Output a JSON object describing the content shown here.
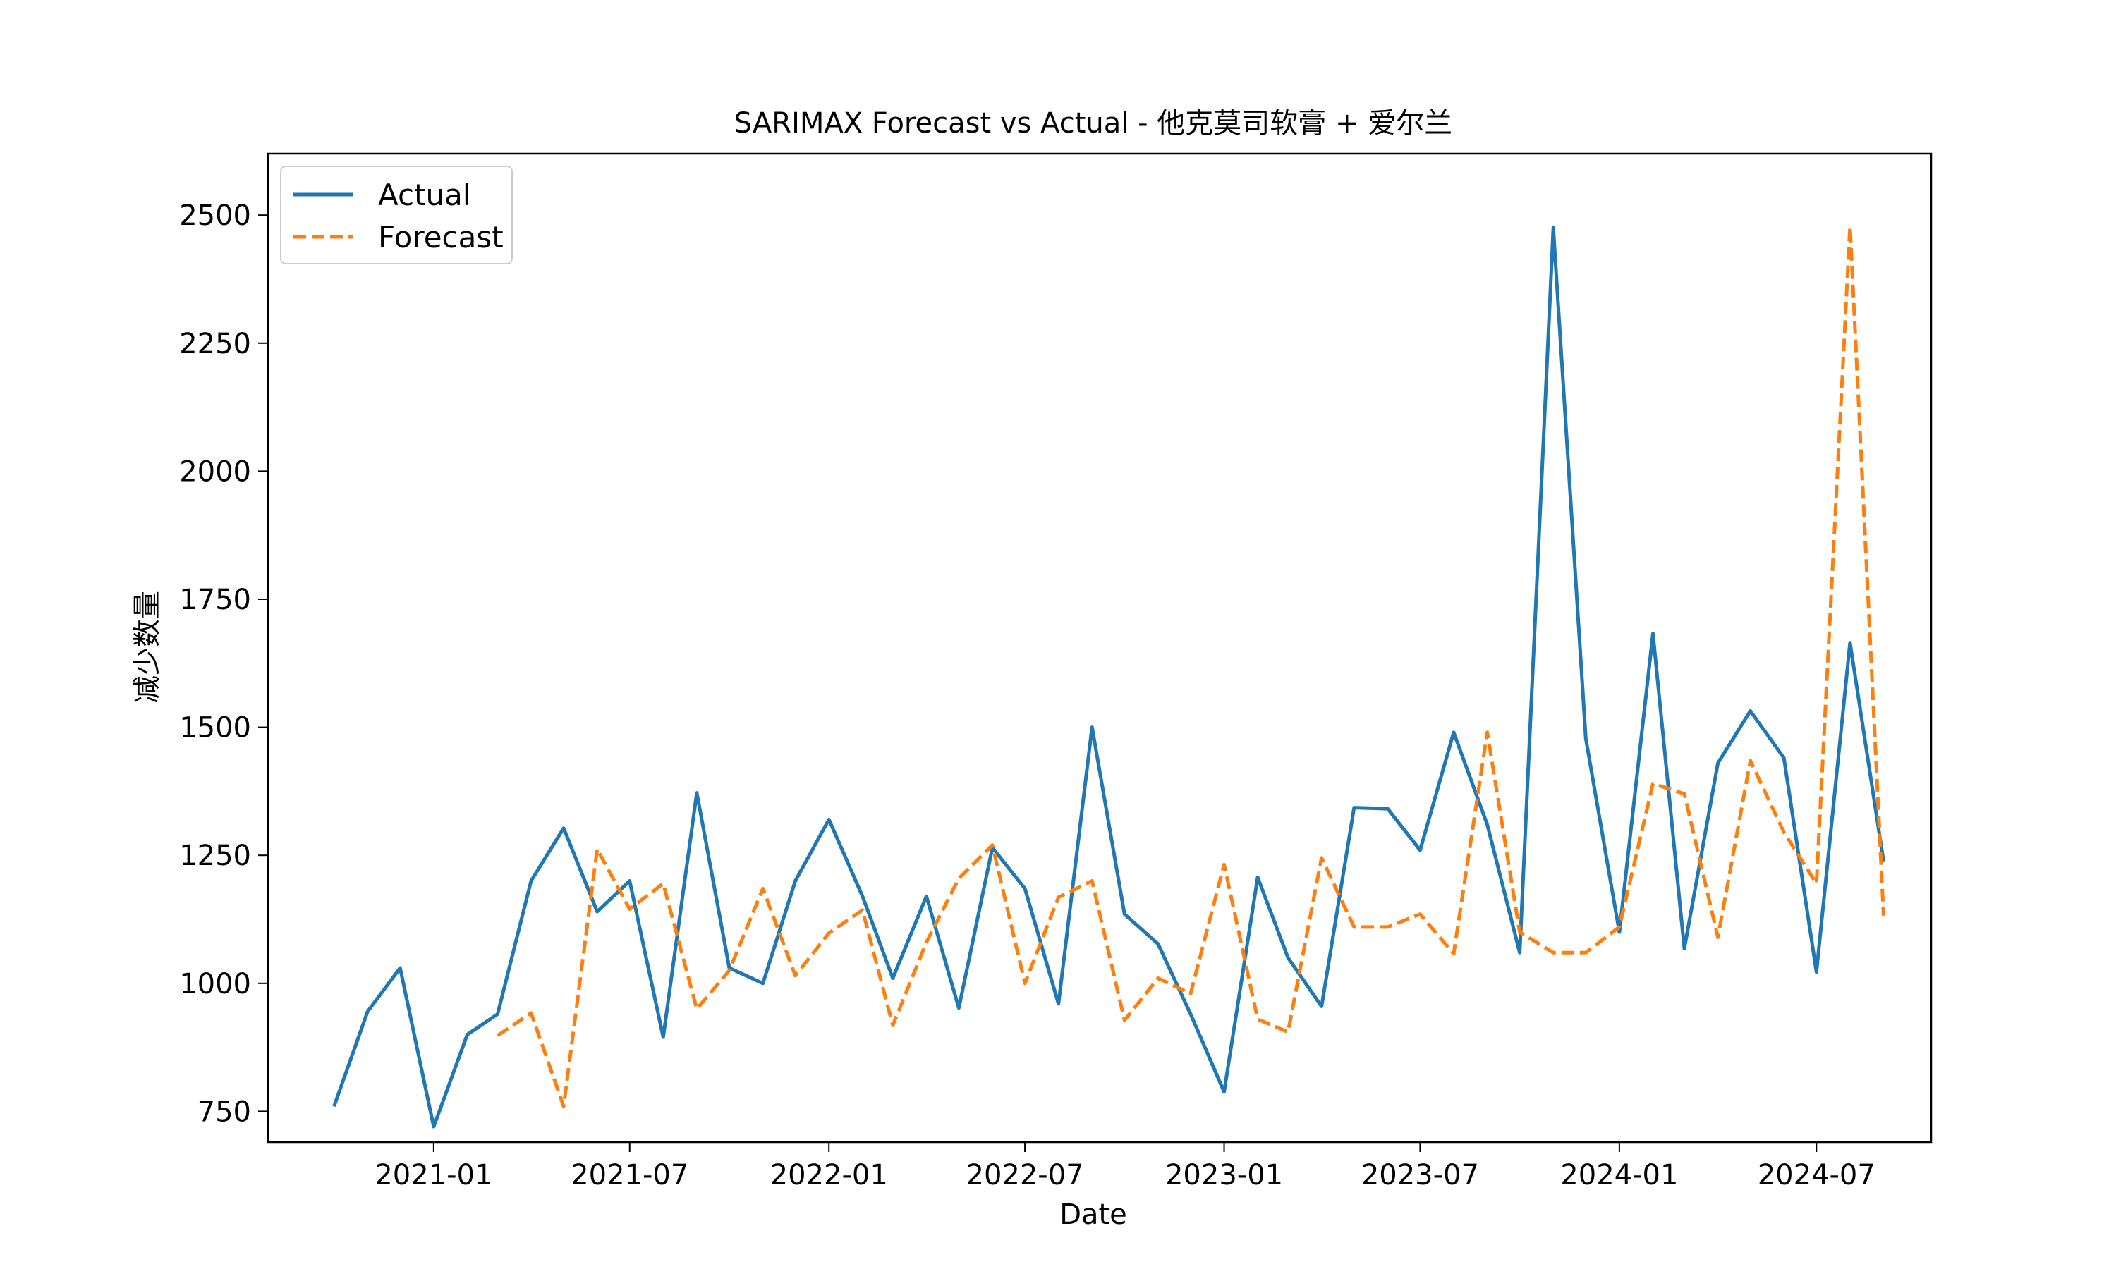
{
  "chart_data": {
    "type": "line",
    "title": "SARIMAX Forecast vs Actual - 他克莫司软膏 + 爱尔兰",
    "xlabel": "Date",
    "ylabel": "减少数量",
    "xlim": [
      "2020-08-01",
      "2024-10-15"
    ],
    "ylim": [
      690,
      2620
    ],
    "x_ticks": [
      "2021-01",
      "2021-07",
      "2022-01",
      "2022-07",
      "2023-01",
      "2023-07",
      "2024-01",
      "2024-07"
    ],
    "y_ticks": [
      750,
      1000,
      1250,
      1500,
      1750,
      2000,
      2250,
      2500
    ],
    "grid": false,
    "legend_position": "top-left",
    "series": [
      {
        "name": "Actual",
        "color": "#1f77b4",
        "dash": "solid",
        "points": [
          [
            "2020-10-01",
            760
          ],
          [
            "2020-11-01",
            945
          ],
          [
            "2020-12-01",
            1030
          ],
          [
            "2021-01-01",
            720
          ],
          [
            "2021-02-01",
            900
          ],
          [
            "2021-03-01",
            940
          ],
          [
            "2021-04-01",
            1200
          ],
          [
            "2021-05-01",
            1303
          ],
          [
            "2021-06-01",
            1140
          ],
          [
            "2021-07-01",
            1200
          ],
          [
            "2021-08-01",
            895
          ],
          [
            "2021-09-01",
            1372
          ],
          [
            "2021-10-01",
            1030
          ],
          [
            "2021-11-01",
            1000
          ],
          [
            "2021-12-01",
            1200
          ],
          [
            "2022-01-01",
            1320
          ],
          [
            "2022-02-01",
            1170
          ],
          [
            "2022-03-01",
            1010
          ],
          [
            "2022-04-01",
            1170
          ],
          [
            "2022-05-01",
            952
          ],
          [
            "2022-06-01",
            1265
          ],
          [
            "2022-07-01",
            1185
          ],
          [
            "2022-08-01",
            960
          ],
          [
            "2022-09-01",
            1500
          ],
          [
            "2022-10-01",
            1135
          ],
          [
            "2022-11-01",
            1077
          ],
          [
            "2022-12-01",
            940
          ],
          [
            "2023-01-01",
            788
          ],
          [
            "2023-02-01",
            1207
          ],
          [
            "2023-03-01",
            1050
          ],
          [
            "2023-04-01",
            955
          ],
          [
            "2023-05-01",
            1343
          ],
          [
            "2023-06-01",
            1341
          ],
          [
            "2023-07-01",
            1260
          ],
          [
            "2023-08-01",
            1490
          ],
          [
            "2023-09-01",
            1310
          ],
          [
            "2023-10-01",
            1060
          ],
          [
            "2023-11-01",
            2475
          ],
          [
            "2023-12-01",
            1478
          ],
          [
            "2024-01-01",
            1100
          ],
          [
            "2024-02-01",
            1683
          ],
          [
            "2024-03-01",
            1068
          ],
          [
            "2024-04-01",
            1430
          ],
          [
            "2024-05-01",
            1532
          ],
          [
            "2024-06-01",
            1440
          ],
          [
            "2024-07-01",
            1022
          ],
          [
            "2024-08-01",
            1665
          ],
          [
            "2024-09-01",
            1238
          ]
        ]
      },
      {
        "name": "Forecast",
        "color": "#ff7f0e",
        "dash": "dashed",
        "points": [
          [
            "2021-03-01",
            898
          ],
          [
            "2021-04-01",
            942
          ],
          [
            "2021-05-01",
            760
          ],
          [
            "2021-06-01",
            1262
          ],
          [
            "2021-07-01",
            1145
          ],
          [
            "2021-08-01",
            1195
          ],
          [
            "2021-09-01",
            950
          ],
          [
            "2021-10-01",
            1025
          ],
          [
            "2021-11-01",
            1185
          ],
          [
            "2021-12-01",
            1015
          ],
          [
            "2022-01-01",
            1098
          ],
          [
            "2022-02-01",
            1143
          ],
          [
            "2022-03-01",
            918
          ],
          [
            "2022-04-01",
            1080
          ],
          [
            "2022-05-01",
            1205
          ],
          [
            "2022-06-01",
            1270
          ],
          [
            "2022-07-01",
            1000
          ],
          [
            "2022-08-01",
            1168
          ],
          [
            "2022-09-01",
            1200
          ],
          [
            "2022-10-01",
            928
          ],
          [
            "2022-11-01",
            1010
          ],
          [
            "2022-12-01",
            980
          ],
          [
            "2023-01-01",
            1232
          ],
          [
            "2023-02-01",
            930
          ],
          [
            "2023-03-01",
            905
          ],
          [
            "2023-04-01",
            1245
          ],
          [
            "2023-05-01",
            1110
          ],
          [
            "2023-06-01",
            1110
          ],
          [
            "2023-07-01",
            1135
          ],
          [
            "2023-08-01",
            1058
          ],
          [
            "2023-09-01",
            1490
          ],
          [
            "2023-10-01",
            1100
          ],
          [
            "2023-11-01",
            1060
          ],
          [
            "2023-12-01",
            1060
          ],
          [
            "2024-01-01",
            1110
          ],
          [
            "2024-02-01",
            1390
          ],
          [
            "2024-03-01",
            1370
          ],
          [
            "2024-04-01",
            1090
          ],
          [
            "2024-05-01",
            1435
          ],
          [
            "2024-06-01",
            1295
          ],
          [
            "2024-07-01",
            1195
          ],
          [
            "2024-08-01",
            2478
          ],
          [
            "2024-09-01",
            1132
          ]
        ]
      }
    ]
  }
}
